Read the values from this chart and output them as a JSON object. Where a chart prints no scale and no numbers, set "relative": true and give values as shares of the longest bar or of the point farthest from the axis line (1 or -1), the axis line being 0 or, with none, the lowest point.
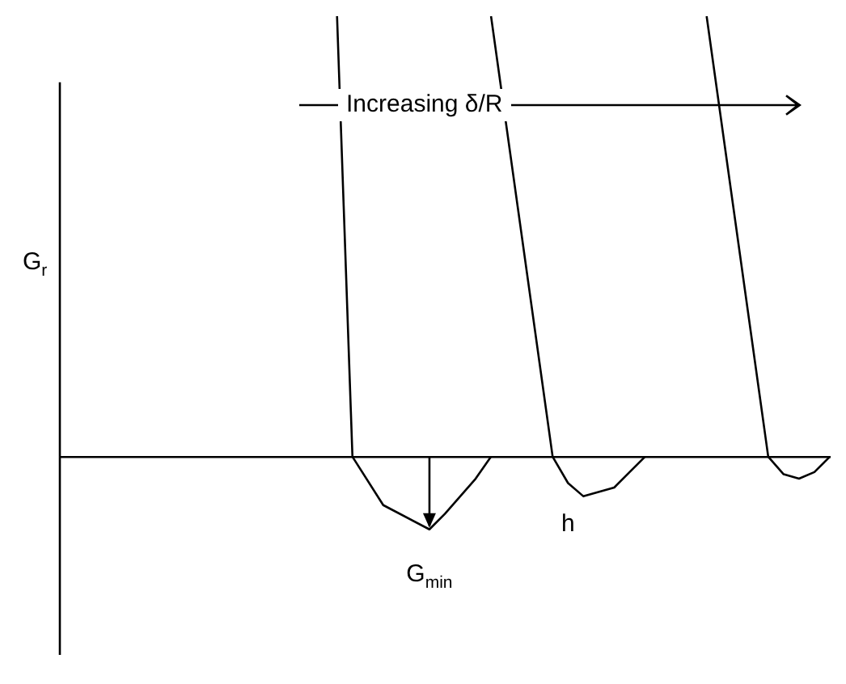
{
  "chart_data": {
    "type": "line",
    "relative": true,
    "xlabel": "h",
    "ylabel": "G$_{r}$",
    "tick_labels": false,
    "legend": false,
    "marker": "none",
    "line_style": "solid",
    "annotations": [
      "Increasing δ/R",
      "G$_{min}$"
    ],
    "categories": [
      null,
      null,
      null,
      null,
      null,
      null,
      null,
      null,
      null,
      null,
      null,
      null,
      null,
      null,
      null,
      null,
      null,
      null,
      null,
      null,
      null,
      null,
      null,
      null,
      null,
      null,
      null,
      null,
      null,
      null,
      null,
      null,
      null,
      null,
      null,
      null,
      null,
      null,
      null,
      null,
      null,
      null,
      null,
      null,
      null,
      null,
      null,
      null,
      null,
      null,
      null
    ],
    "series": [
      {
        "color": "#000000",
        "values": [
          null,
          null,
          null,
          null,
          null,
          null,
          null,
          null,
          null,
          null,
          null,
          null,
          null,
          null,
          null,
          null,
          null,
          null,
          1,
          0,
          null,
          -0.11,
          null,
          null,
          -0.165,
          -0.13,
          null,
          -0.05,
          0,
          null,
          null,
          null,
          null,
          null,
          null,
          null,
          null,
          null,
          null,
          null,
          null,
          null,
          null,
          null,
          null,
          null,
          null,
          null,
          null,
          null,
          null
        ]
      },
      {
        "color": "#000000",
        "values": [
          null,
          null,
          null,
          null,
          null,
          null,
          null,
          null,
          null,
          null,
          null,
          null,
          null,
          null,
          null,
          null,
          null,
          null,
          null,
          null,
          null,
          null,
          null,
          null,
          null,
          null,
          null,
          null,
          1,
          null,
          null,
          null,
          0,
          -0.06,
          -0.09,
          null,
          -0.07,
          -0.035,
          0,
          null,
          null,
          null,
          null,
          null,
          null,
          null,
          null,
          null,
          null,
          null,
          null
        ]
      },
      {
        "color": "#000000",
        "values": [
          null,
          null,
          null,
          null,
          null,
          null,
          null,
          null,
          null,
          null,
          null,
          null,
          null,
          null,
          null,
          null,
          null,
          null,
          null,
          null,
          null,
          null,
          null,
          null,
          null,
          null,
          null,
          null,
          null,
          null,
          null,
          null,
          null,
          null,
          null,
          null,
          null,
          null,
          null,
          null,
          null,
          null,
          1,
          null,
          null,
          null,
          0,
          -0.04,
          -0.05,
          -0.035,
          0
        ]
      }
    ]
  }
}
